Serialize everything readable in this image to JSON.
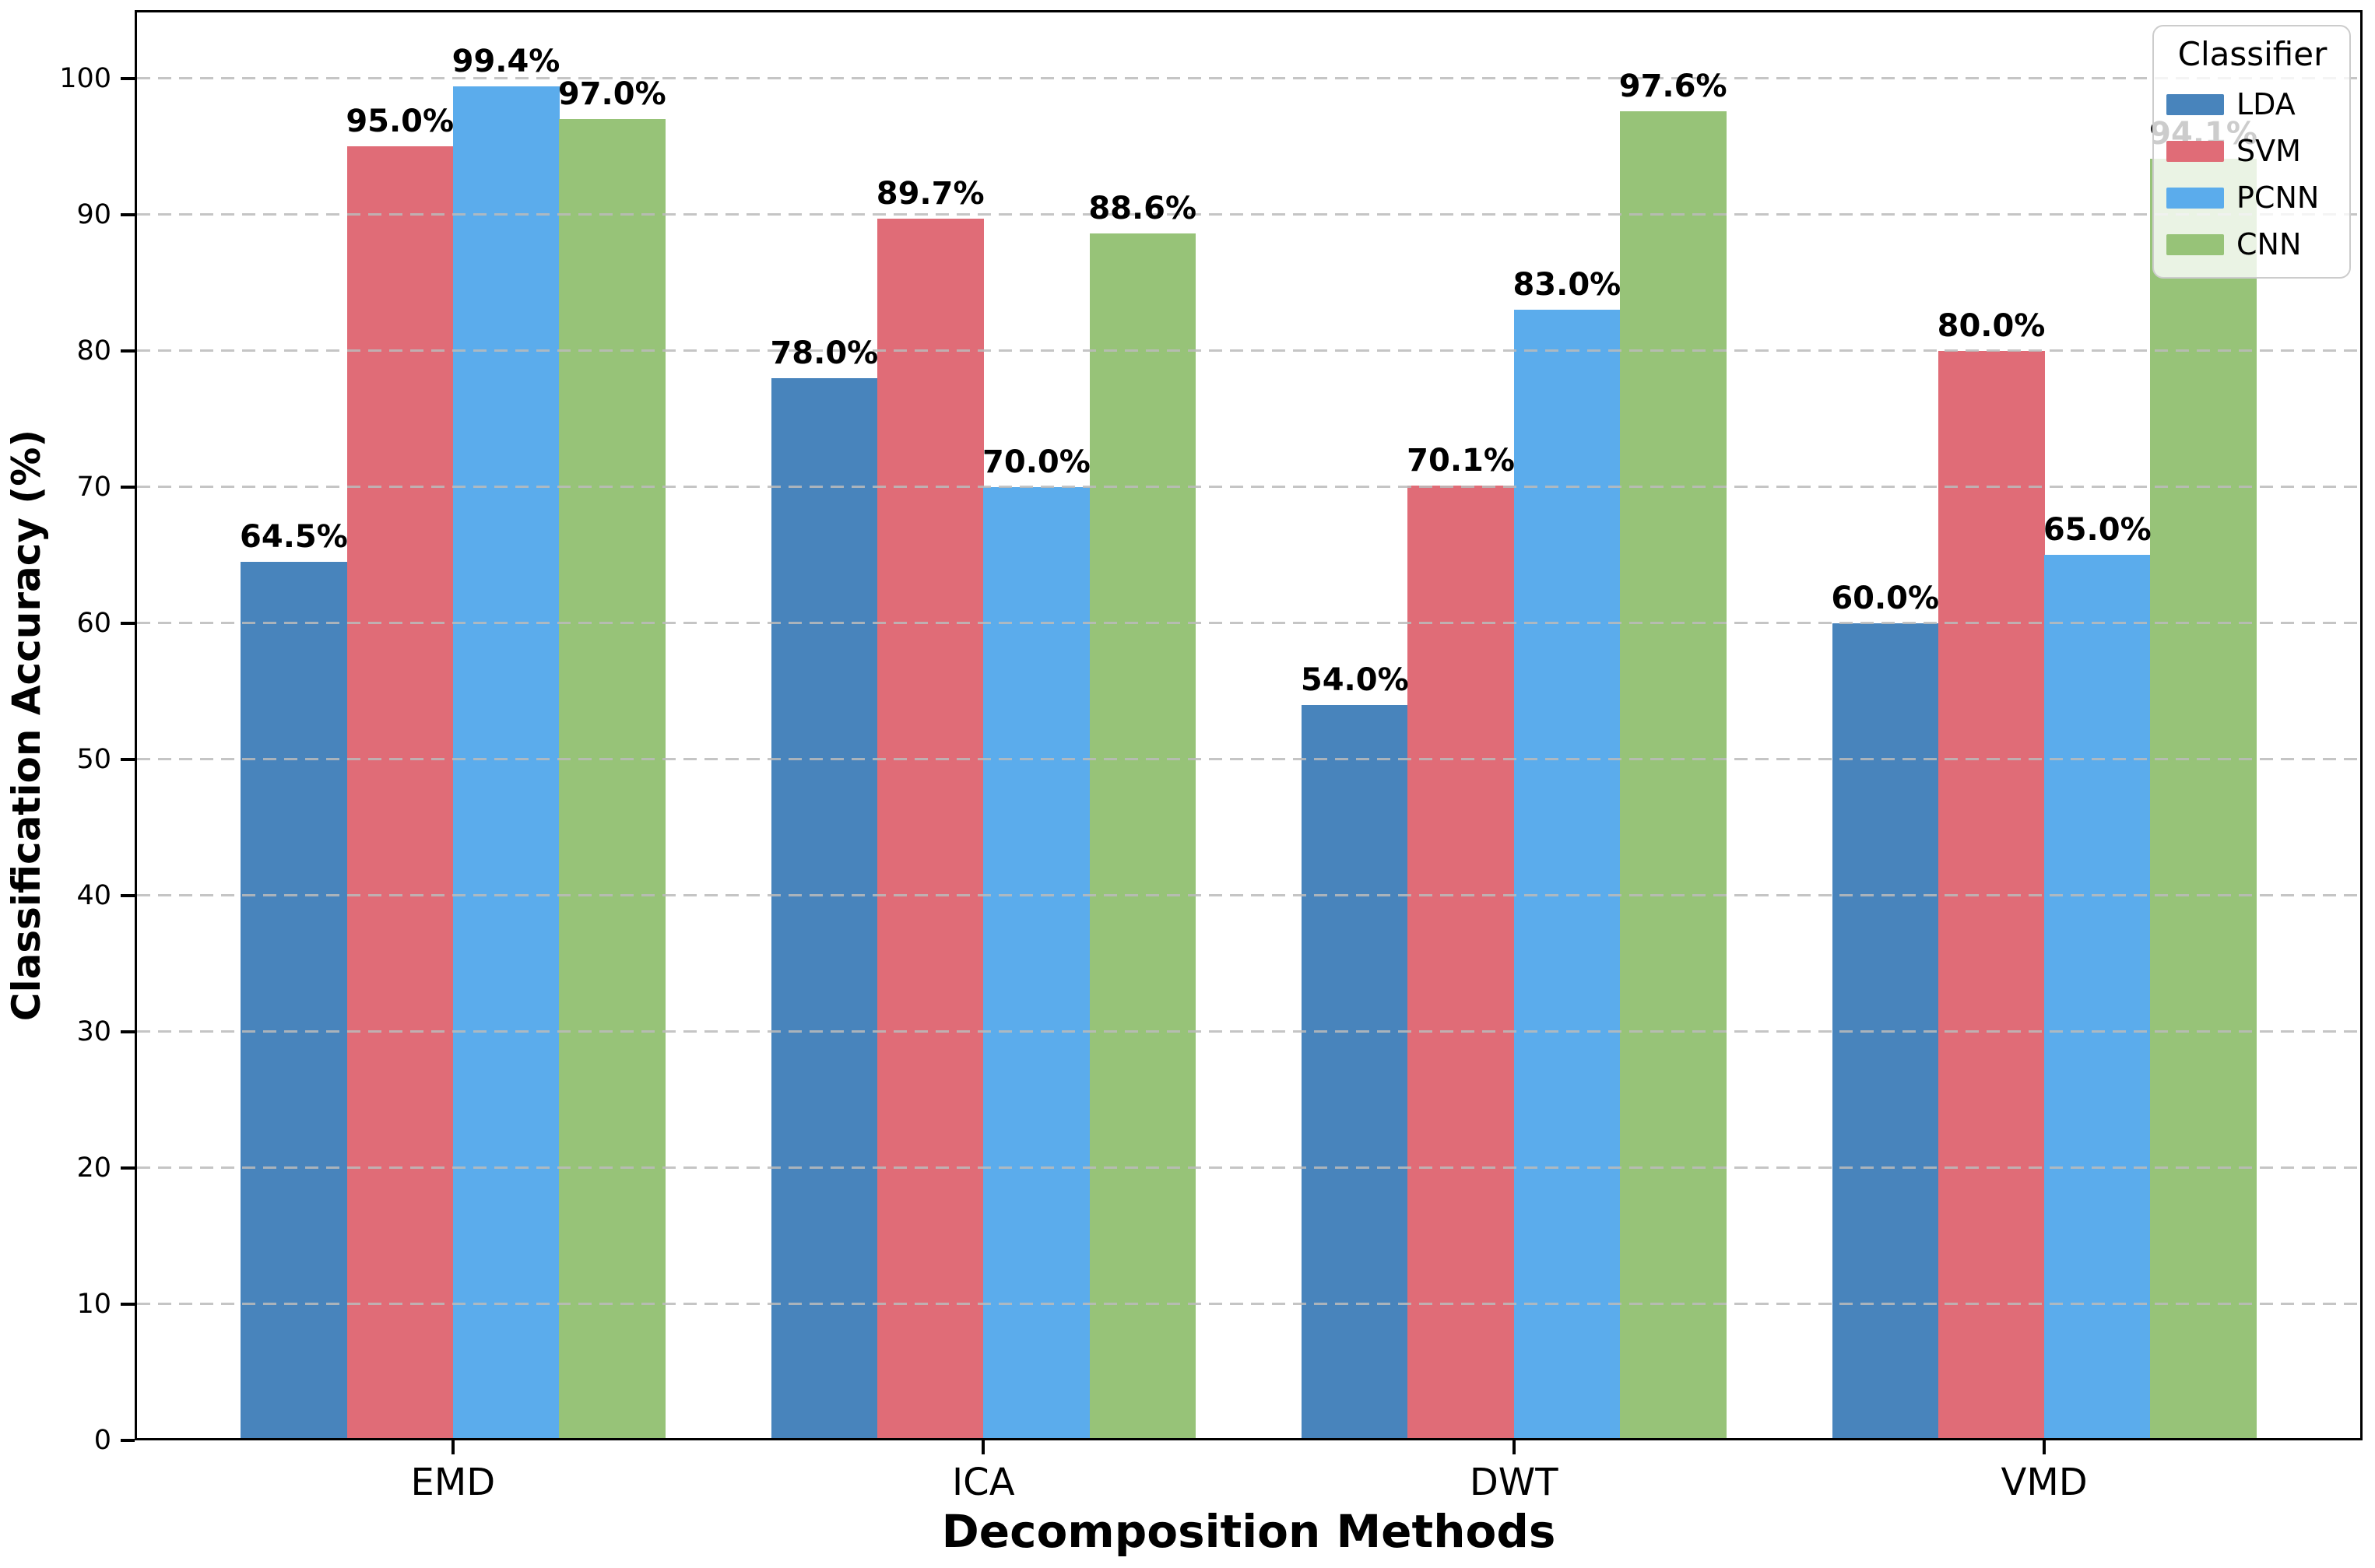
{
  "figure": {
    "background": "#ffffff"
  },
  "chart_data": {
    "type": "bar",
    "title": "",
    "xlabel": "Decomposition Methods",
    "ylabel": "Classification Accuracy (%)",
    "legend_title": "Classifier",
    "legend_position": "upper right",
    "grid": "horizontal dashed gridlines drawn over bars",
    "categories": [
      "EMD",
      "ICA",
      "DWT",
      "VMD"
    ],
    "series": [
      {
        "name": "LDA",
        "color": "#4884BC",
        "values": [
          64.5,
          78.0,
          54.0,
          60.0
        ],
        "labels": [
          "64.5%",
          "78.0%",
          "54.0%",
          "60.0%"
        ]
      },
      {
        "name": "SVM",
        "color": "#E06C77",
        "values": [
          95.0,
          89.7,
          70.1,
          80.0
        ],
        "labels": [
          "95.0%",
          "89.7%",
          "70.1%",
          "80.0%"
        ]
      },
      {
        "name": "PCNN",
        "color": "#5BACEC",
        "values": [
          99.4,
          70.0,
          83.0,
          65.0
        ],
        "labels": [
          "99.4%",
          "70.0%",
          "83.0%",
          "65.0%"
        ]
      },
      {
        "name": "CNN",
        "color": "#97C378",
        "values": [
          97.0,
          88.6,
          97.6,
          94.1
        ],
        "labels": [
          "97.0%",
          "88.6%",
          "97.6%",
          "94.1%"
        ]
      }
    ],
    "ylim": [
      0,
      105
    ],
    "yticks": [
      0,
      10,
      20,
      30,
      40,
      50,
      60,
      70,
      80,
      90,
      100
    ],
    "ytick_labels": [
      "0",
      "10",
      "20",
      "30",
      "40",
      "50",
      "60",
      "70",
      "80",
      "90",
      "100"
    ],
    "bar_width_fraction": 0.2,
    "colors": {
      "spine": "#000000",
      "gridline": "#bbbbbb",
      "value_label": "#000000",
      "legend_border": "#cccccc"
    }
  }
}
